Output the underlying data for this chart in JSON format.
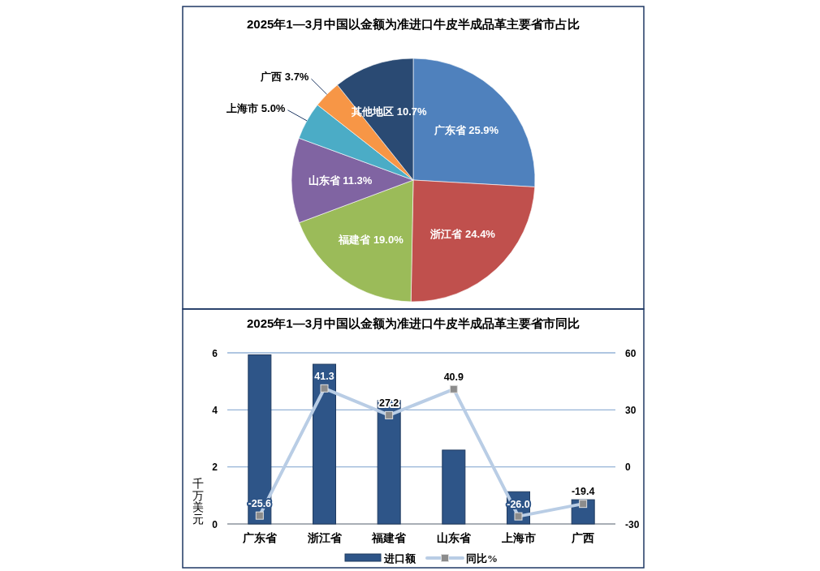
{
  "chart_data": [
    {
      "type": "pie",
      "title": "2025年1—3月中国以金额为准进口牛皮半成品革主要省市占比",
      "categories": [
        "广东省",
        "浙江省",
        "福建省",
        "山东省",
        "上海市",
        "广西",
        "其他地区"
      ],
      "values": [
        25.9,
        24.4,
        19.0,
        11.3,
        5.0,
        3.7,
        10.7
      ],
      "value_labels": [
        "25.9%",
        "24.4%",
        "19.0%",
        "11.3%",
        "5.0%",
        "3.7%",
        "10.7%"
      ],
      "colors": [
        "#4f81bd",
        "#c0504d",
        "#9bbb59",
        "#8064a2",
        "#4bacc6",
        "#f79646",
        "#2a4a73"
      ]
    },
    {
      "type": "bar",
      "title": "2025年1—3月中国以金额为准进口牛皮半成品革主要省市同比",
      "ylabel": "千万美元",
      "categories": [
        "广东省",
        "浙江省",
        "福建省",
        "山东省",
        "上海市",
        "广西"
      ],
      "ylim": [
        0,
        6
      ],
      "yticks": [
        0,
        2,
        4,
        6
      ],
      "y2lim": [
        -30,
        60
      ],
      "y2ticks": [
        -30,
        0,
        30,
        60
      ],
      "grid": "y",
      "legend": "bottom",
      "series": [
        {
          "name": "进口额",
          "type": "bar",
          "color": "#2e5588",
          "values": [
            5.93,
            5.6,
            4.33,
            2.59,
            1.13,
            0.85
          ]
        },
        {
          "name": "同比%",
          "type": "line",
          "axis": "y2",
          "color": "#b9cde5",
          "marker": "square",
          "values": [
            -25.6,
            41.3,
            27.2,
            40.9,
            -26.0,
            -19.4
          ],
          "value_labels": [
            "-25.6",
            "41.3",
            "27.2",
            "40.9",
            "-26.0",
            "-19.4"
          ]
        }
      ]
    }
  ]
}
